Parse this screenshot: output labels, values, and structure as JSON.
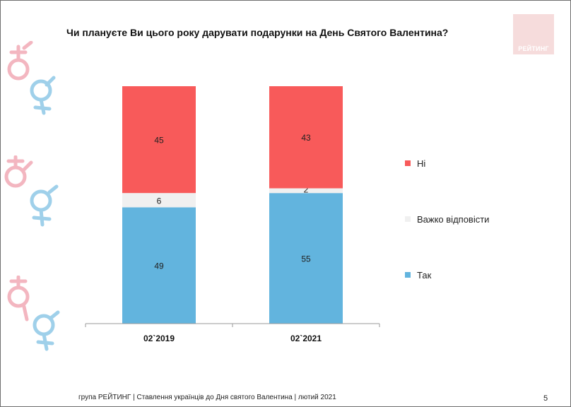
{
  "title": "Чи плануєте Ви цього року дарувати подарунки на День Святого Валентина?",
  "logo_text": "РЕЙТИНГ",
  "footer": "група РЕЙТИНГ | Ставлення українців до Дня святого Валентина | лютий 2021",
  "page_number": "5",
  "icons": [
    "gender-symbols-icon",
    "gender-symbols-icon",
    "gender-symbols-icon"
  ],
  "colors": {
    "no": "#f85a5a",
    "hard": "#f0f0f0",
    "yes": "#62b4de"
  },
  "chart_data": {
    "type": "bar",
    "stacked": true,
    "categories": [
      "02`2019",
      "02`2021"
    ],
    "series": [
      {
        "name": "Так",
        "values": [
          49,
          55
        ],
        "color": "#62b4de"
      },
      {
        "name": "Важко відповісти",
        "values": [
          6,
          2
        ],
        "color": "#f0f0f0"
      },
      {
        "name": "Ні",
        "values": [
          45,
          43
        ],
        "color": "#f85a5a"
      }
    ],
    "ylim": [
      0,
      100
    ],
    "grid": false,
    "legend_position": "right",
    "legend_order": [
      "Ні",
      "Важко відповісти",
      "Так"
    ]
  }
}
